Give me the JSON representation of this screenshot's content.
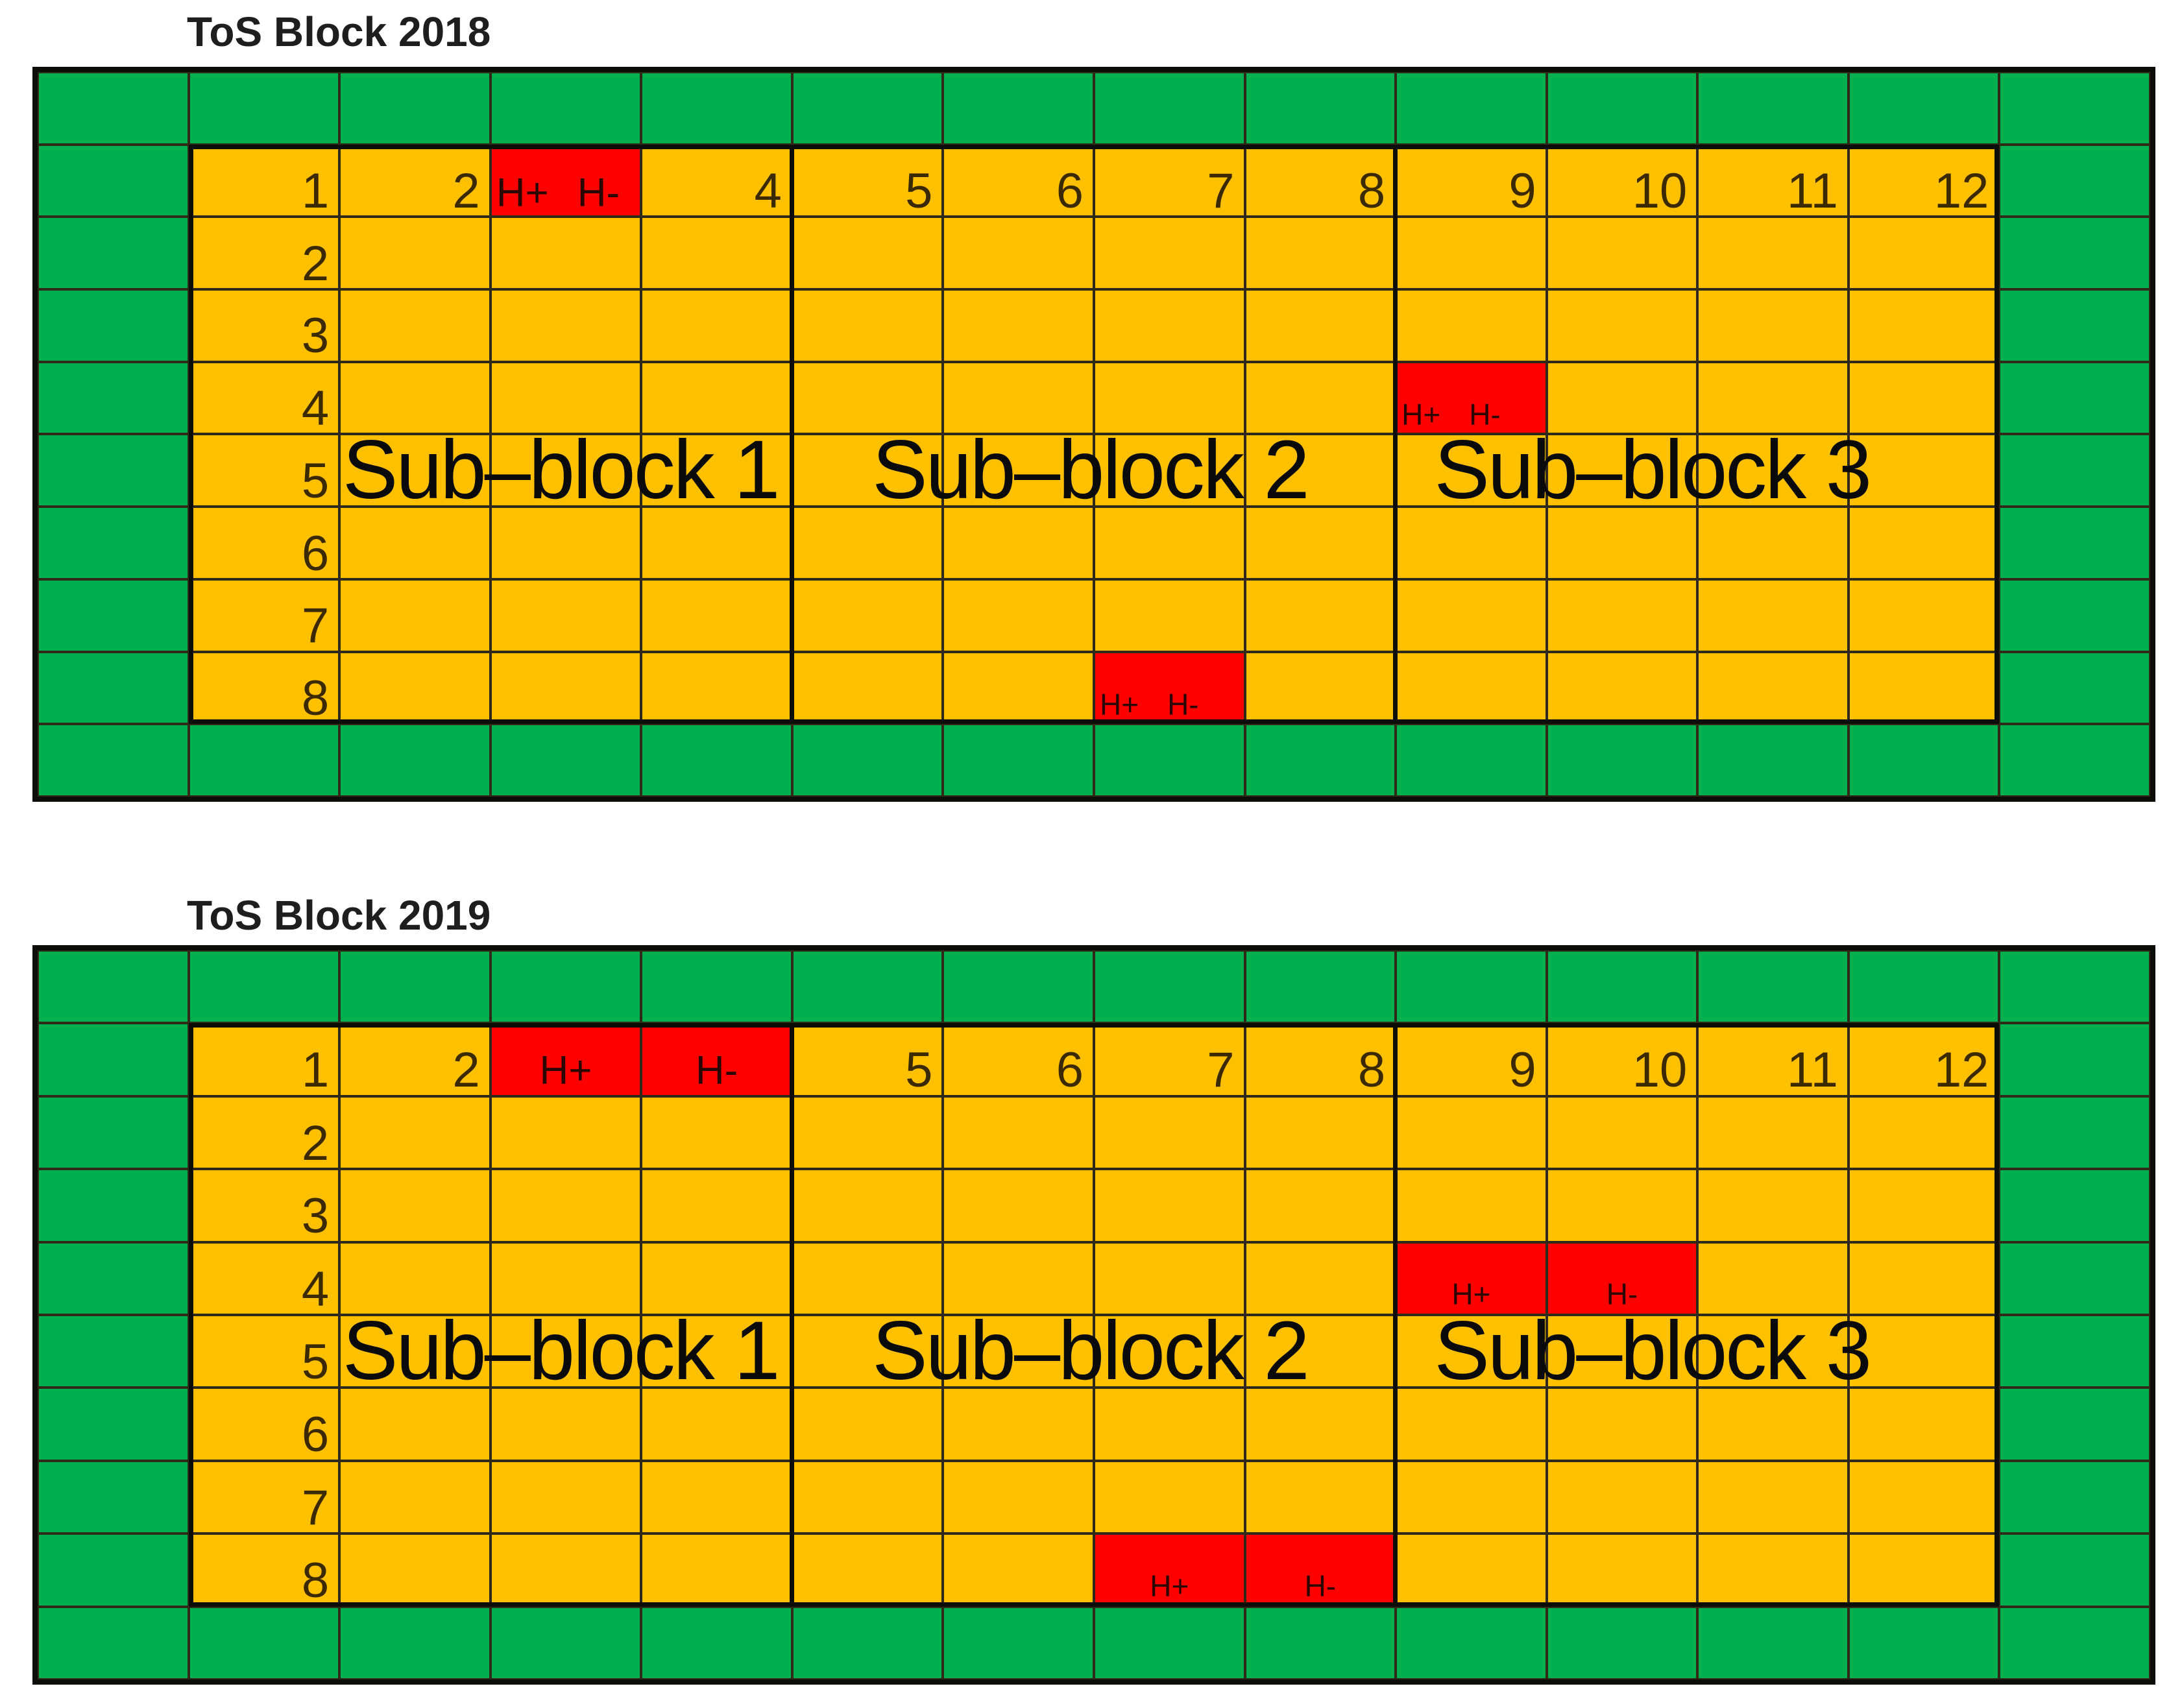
{
  "figure": {
    "background": "#ffffff",
    "grid_columns_total": 14,
    "grid_rows_total": 10,
    "plot_columns": 12,
    "plot_rows": 8
  },
  "colors": {
    "border_green": "#00B050",
    "plot_orange": "#FFC000",
    "hill_red": "#FF0000",
    "grid_line": "#2f2a18",
    "thick_line": "#0c0c08"
  },
  "blocks": [
    {
      "id": "tos-block-2018",
      "title": "ToS Block 2018",
      "col_headers": [
        "1",
        "2",
        "",
        "4",
        "5",
        "6",
        "7",
        "8",
        "9",
        "10",
        "11",
        "12"
      ],
      "row_numbers": [
        "1",
        "2",
        "3",
        "4",
        "5",
        "6",
        "7",
        "8"
      ],
      "sub_block_labels": [
        "Sub–block 1",
        "Sub–block 2",
        "Sub–block 3"
      ],
      "red_cells": [
        {
          "row": 1,
          "col": 3,
          "labels": [
            "H+",
            "H-"
          ],
          "size": "big"
        },
        {
          "row": 4,
          "col": 9,
          "labels": [
            "H+",
            "H-"
          ],
          "size": "small"
        },
        {
          "row": 8,
          "col": 7,
          "labels": [
            "H+",
            "H-"
          ],
          "size": "small"
        }
      ]
    },
    {
      "id": "tos-block-2019",
      "title": "ToS Block 2019",
      "col_headers": [
        "1",
        "2",
        "",
        "",
        "5",
        "6",
        "7",
        "8",
        "9",
        "10",
        "11",
        "12"
      ],
      "row_numbers": [
        "1",
        "2",
        "3",
        "4",
        "5",
        "6",
        "7",
        "8"
      ],
      "sub_block_labels": [
        "Sub–block 1",
        "Sub–block 2",
        "Sub–block 3"
      ],
      "red_cells": [
        {
          "row": 1,
          "col": 3,
          "labels": [
            "H+"
          ],
          "size": "big"
        },
        {
          "row": 1,
          "col": 4,
          "labels": [
            "H-"
          ],
          "size": "big"
        },
        {
          "row": 4,
          "col": 9,
          "labels": [
            "H+"
          ],
          "size": "small"
        },
        {
          "row": 4,
          "col": 10,
          "labels": [
            "H-"
          ],
          "size": "small"
        },
        {
          "row": 8,
          "col": 7,
          "labels": [
            "H+"
          ],
          "size": "small"
        },
        {
          "row": 8,
          "col": 8,
          "labels": [
            "H-"
          ],
          "size": "small"
        }
      ]
    }
  ]
}
